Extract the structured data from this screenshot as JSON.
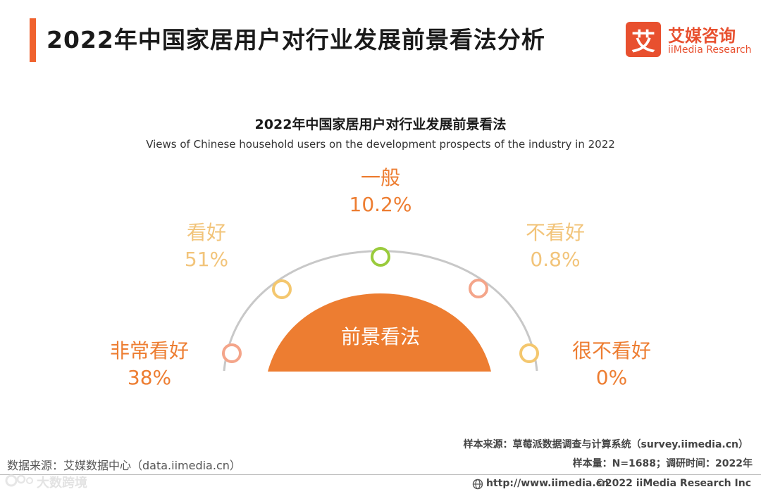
{
  "header": {
    "title": "2022年中国家居用户对行业发展前景看法分析",
    "accent_color": "#f0622e"
  },
  "logo": {
    "mark": "艾",
    "name_cn": "艾媒咨询",
    "name_en": "iiMedia Research",
    "color": "#e8502f"
  },
  "chart_data": {
    "type": "pie",
    "title": "2022年中国家居用户对行业发展前景看法",
    "subtitle": "Views of Chinese household users on the development prospects of the industry in 2022",
    "center_label": "前景看法",
    "categories": [
      "非常看好",
      "看好",
      "一般",
      "不看好",
      "很不看好"
    ],
    "values": [
      38,
      51,
      10.2,
      0.8,
      0
    ],
    "value_labels": [
      "38%",
      "51%",
      "10.2%",
      "0.8%",
      "0%"
    ],
    "unit": "%",
    "colors": {
      "center": "#ed7d31",
      "arc": "#c8c8c8",
      "point_fill": "#ffffff",
      "labels": [
        "#ed7d31",
        "#f2c47a",
        "#ed7d31",
        "#f2c47a",
        "#ed7d31"
      ],
      "markers": [
        "#f4a58a",
        "#f4c76e",
        "#9acb3c",
        "#f4a58a",
        "#f4c76e"
      ]
    }
  },
  "notes": {
    "sample_source": "样本来源：草莓派数据调查与计算系统（survey.iimedia.cn）",
    "sample_size": "样本量：N=1688；调研时间：2022年",
    "data_source": "数据来源：艾媒数据中心（data.iimedia.cn）"
  },
  "footer": {
    "url": "http://www.iimedia.cn",
    "copyright": "©2022  iiMedia Research  Inc",
    "watermark": "大数跨境",
    "globe_icon": "globe-icon"
  }
}
